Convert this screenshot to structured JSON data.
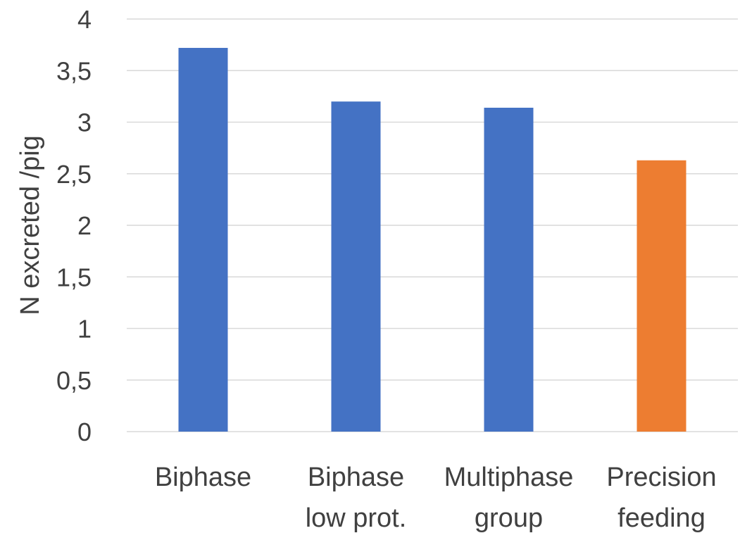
{
  "chart_data": {
    "type": "bar",
    "categories": [
      [
        "Biphase"
      ],
      [
        "Biphase",
        "low prot."
      ],
      [
        "Multiphase",
        "group"
      ],
      [
        "Precision",
        "feeding"
      ]
    ],
    "values": [
      3.72,
      3.2,
      3.14,
      2.63
    ],
    "bar_colors": [
      "#4472C4",
      "#4472C4",
      "#4472C4",
      "#ED7D31"
    ],
    "title": "",
    "xlabel": "",
    "ylabel": "N excreted /pig",
    "ylim": [
      0,
      4
    ],
    "yticks": [
      0,
      0.5,
      1,
      1.5,
      2,
      2.5,
      3,
      3.5,
      4
    ],
    "ytick_labels": [
      "0",
      "0,5",
      "1",
      "1,5",
      "2",
      "2,5",
      "3",
      "3,5",
      "4"
    ],
    "grid": true,
    "gridline_color": "#D9D9D9",
    "text_color": "#404040"
  }
}
